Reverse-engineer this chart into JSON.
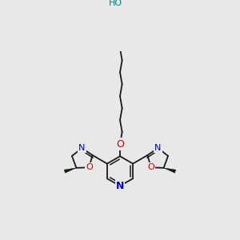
{
  "bg_color": "#e8e8e8",
  "bond_color": "#1a1a1a",
  "N_color": "#0000cc",
  "O_color": "#cc0000",
  "OH_color": "#008080",
  "font_size": 8,
  "lw": 1.3,
  "figsize": [
    3.0,
    3.0
  ],
  "dpi": 100,
  "xlim": [
    20,
    280
  ],
  "ylim": [
    10,
    290
  ]
}
